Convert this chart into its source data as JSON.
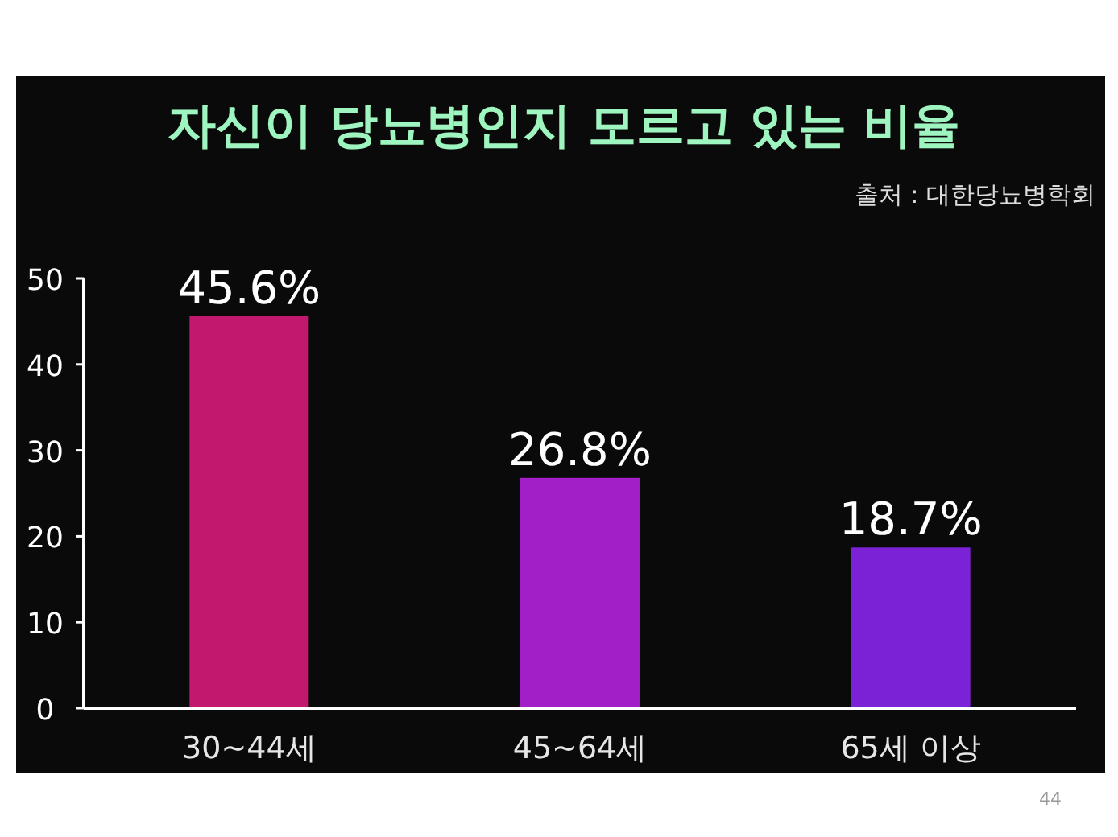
{
  "chart_data": {
    "type": "bar",
    "title": "자신이 당뇨병인지 모르고 있는 비율",
    "annotations": [
      "출처 : 대한당뇨병학회",
      "44"
    ],
    "categories": [
      "30~44세",
      "45~64세",
      "65세 이상"
    ],
    "values": [
      45.6,
      26.8,
      18.7
    ],
    "colors": [
      "#c2186e",
      "#a21fc8",
      "#7b22d6"
    ],
    "value_labels": [
      "45.6%",
      "26.8%",
      "18.7%"
    ],
    "ylim": [
      0,
      50
    ],
    "yticks": [
      0,
      10,
      20,
      30,
      40,
      50
    ]
  }
}
